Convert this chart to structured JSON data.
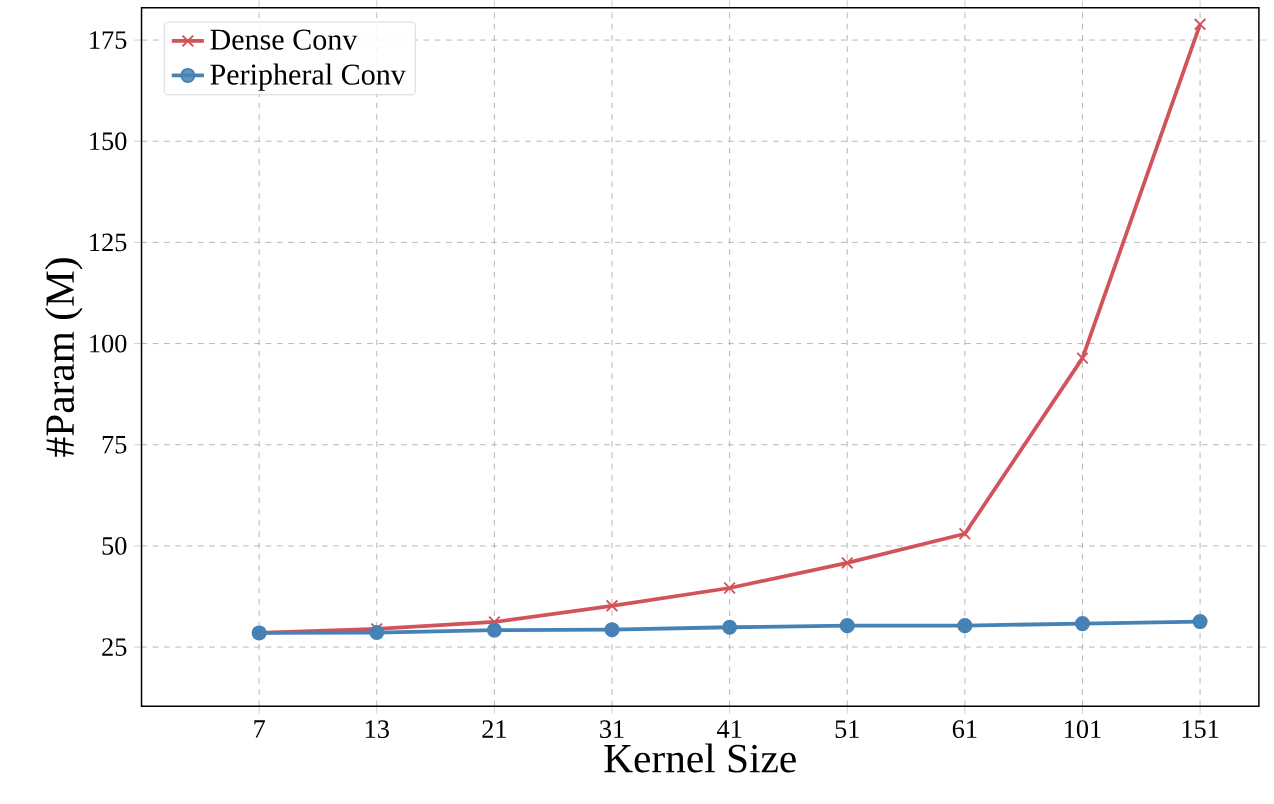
{
  "chart_data": {
    "type": "line",
    "xlabel": "Kernel Size",
    "ylabel": "#Param (M)",
    "categories": [
      "7",
      "13",
      "21",
      "31",
      "41",
      "51",
      "61",
      "101",
      "151"
    ],
    "series": [
      {
        "name": "Dense Conv",
        "color": "#d1545a",
        "marker": "cross",
        "values": [
          28.5,
          29.5,
          31.2,
          35.2,
          39.6,
          45.8,
          53.0,
          96.4,
          178.9
        ]
      },
      {
        "name": "Peripheral Conv",
        "color": "#4682b4",
        "marker": "circle",
        "values": [
          28.5,
          28.6,
          29.2,
          29.3,
          29.9,
          30.3,
          30.3,
          30.8,
          31.3
        ]
      }
    ],
    "ylim": [
      10.4,
      183
    ],
    "yticks": [
      25,
      50,
      75,
      100,
      125,
      150,
      175
    ],
    "grid": true,
    "legend": "top left",
    "line_style": "solid"
  }
}
